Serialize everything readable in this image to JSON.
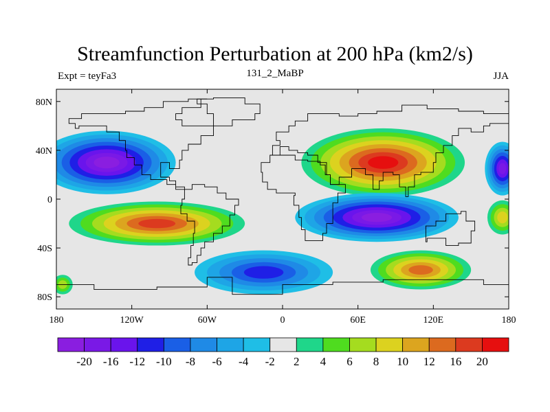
{
  "title": "Streamfunction Perturbation at 200 hPa (km2/s)",
  "left_label": "Expt = teyFa3",
  "center_label": "131_2_MaBP",
  "right_label": "JJA",
  "map": {
    "projection": "cylindrical-equidistant",
    "lon_range": [
      -180,
      180
    ],
    "lat_range": [
      -90,
      90
    ],
    "lon_ticks": [
      {
        "value": -180,
        "label": "180"
      },
      {
        "value": -120,
        "label": "120W"
      },
      {
        "value": -60,
        "label": "60W"
      },
      {
        "value": 0,
        "label": "0"
      },
      {
        "value": 60,
        "label": "60E"
      },
      {
        "value": 120,
        "label": "120E"
      },
      {
        "value": 180,
        "label": "180"
      }
    ],
    "lat_ticks": [
      {
        "value": 80,
        "label": "80N"
      },
      {
        "value": 40,
        "label": "40N"
      },
      {
        "value": 0,
        "label": "0"
      },
      {
        "value": -40,
        "label": "40S"
      },
      {
        "value": -80,
        "label": "80S"
      }
    ],
    "background_color": "#e6e6e6",
    "coastline_color": "#000000"
  },
  "colorbar": {
    "levels": [
      "-20",
      "-16",
      "-12",
      "-10",
      "-8",
      "-6",
      "-4",
      "-2",
      "2",
      "4",
      "6",
      "8",
      "10",
      "12",
      "16",
      "20"
    ],
    "colors": [
      "#8a1ee0",
      "#7a19e6",
      "#6a14ec",
      "#1f1fe6",
      "#1a5fe6",
      "#1f8ae6",
      "#1ea5e6",
      "#1fbee6",
      "#e6e6e6",
      "#1fd68a",
      "#4fdc1f",
      "#a5dc1f",
      "#dcd21f",
      "#dca51f",
      "#dc6a1f",
      "#dc3a1f",
      "#e60f0f"
    ]
  },
  "features": [
    {
      "name": "north-pacific-low",
      "sign": "negative",
      "center": [
        -140,
        30
      ],
      "radius": [
        55,
        26
      ],
      "peak_level": -20
    },
    {
      "name": "north-pacific-low-east-edge",
      "sign": "negative",
      "center": [
        175,
        25
      ],
      "radius": [
        14,
        22
      ],
      "peak_level": -16
    },
    {
      "name": "eurasia-high",
      "sign": "positive",
      "center": [
        80,
        30
      ],
      "radius": [
        65,
        28
      ],
      "peak_level": 20
    },
    {
      "name": "south-pacific-high",
      "sign": "positive",
      "center": [
        -100,
        -20
      ],
      "radius": [
        70,
        18
      ],
      "peak_level": 16
    },
    {
      "name": "indian-ocean-low",
      "sign": "negative",
      "center": [
        75,
        -15
      ],
      "radius": [
        65,
        20
      ],
      "peak_level": -20
    },
    {
      "name": "south-atlantic-low",
      "sign": "negative",
      "center": [
        -15,
        -60
      ],
      "radius": [
        55,
        18
      ],
      "peak_level": -10
    },
    {
      "name": "south-indian-high",
      "sign": "positive",
      "center": [
        110,
        -58
      ],
      "radius": [
        40,
        16
      ],
      "peak_level": 12
    },
    {
      "name": "west-pacific-high-edge",
      "sign": "positive",
      "center": [
        175,
        -15
      ],
      "radius": [
        12,
        14
      ],
      "peak_level": 8
    },
    {
      "name": "south-pacific-small-high",
      "sign": "positive",
      "center": [
        -175,
        -70
      ],
      "radius": [
        8,
        8
      ],
      "peak_level": 6
    }
  ]
}
